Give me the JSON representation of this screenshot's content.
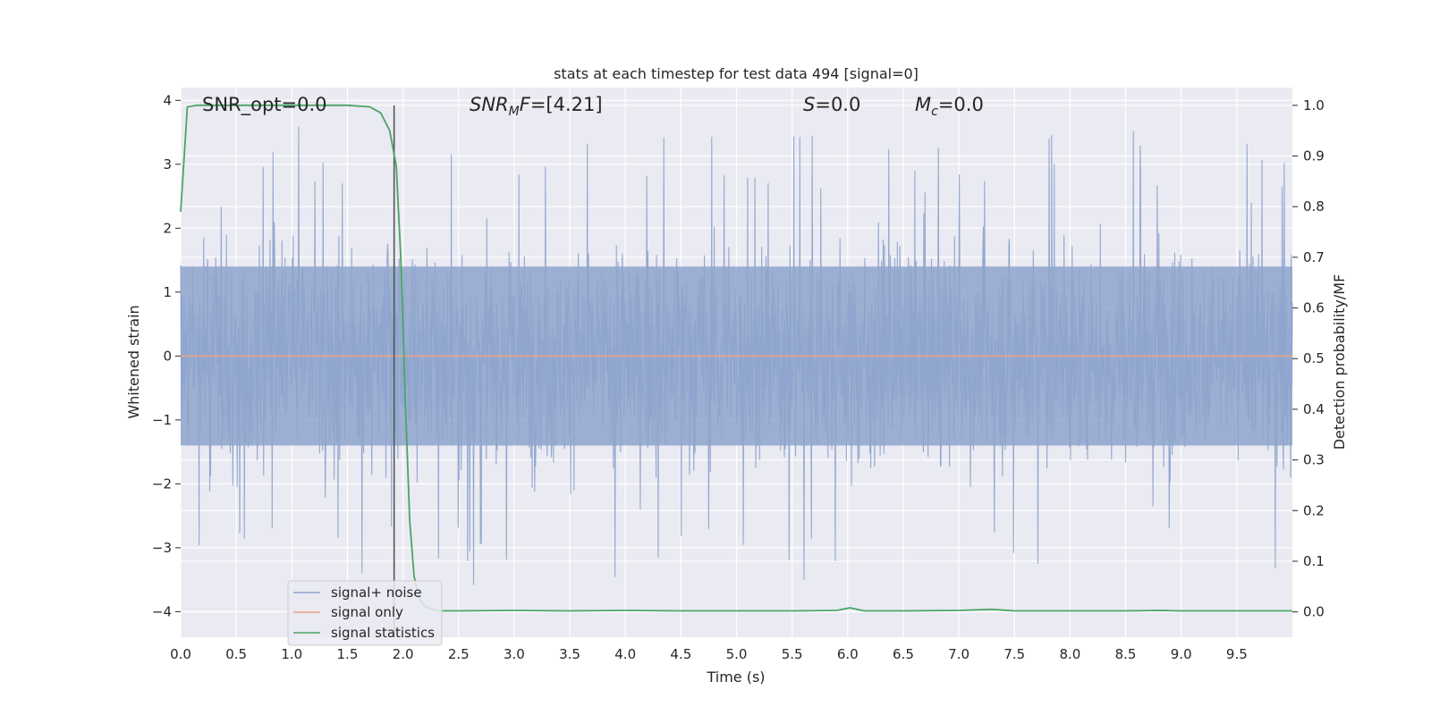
{
  "chart_data": {
    "type": "line",
    "title": "stats at each timestep for test data 494 [signal=0]",
    "xlabel": "Time (s)",
    "ylabel": "Whitened strain",
    "y2label": "Detection probability/MF",
    "xlim": [
      0.0,
      10.0
    ],
    "ylim": [
      -4.4,
      4.2
    ],
    "y2lim": [
      -0.05,
      1.035
    ],
    "xticks": [
      "0.0",
      "0.5",
      "1.0",
      "1.5",
      "2.0",
      "2.5",
      "3.0",
      "3.5",
      "4.0",
      "4.5",
      "5.0",
      "5.5",
      "6.0",
      "6.5",
      "7.0",
      "7.5",
      "8.0",
      "8.5",
      "9.0",
      "9.5"
    ],
    "yticks": [
      "4",
      "3",
      "2",
      "1",
      "0",
      "−1",
      "−2",
      "−3",
      "−4"
    ],
    "y2ticks": [
      "1.0",
      "0.9",
      "0.8",
      "0.7",
      "0.6",
      "0.5",
      "0.4",
      "0.3",
      "0.2",
      "0.1",
      "0.0"
    ],
    "grid": true,
    "legend_position": "lower-left",
    "annotations": {
      "snr_opt": "SNR_opt=0.0",
      "snr_mf_var": "SNR",
      "snr_mf_sub": "M",
      "snr_mf_var2": "F",
      "snr_mf_value": "=[4.21]",
      "s_var": "S",
      "s_value": "=0.0",
      "mc_var": "M",
      "mc_sub": "c",
      "mc_value": "=0.0"
    },
    "vertical_marker_x": 1.92,
    "series": [
      {
        "name": "signal+ noise",
        "axis": "left",
        "color": "#8ea4cc",
        "description_values": {
          "sample_rate_hz": 2048,
          "typical_abs_peak": 2.3,
          "band_core_abs": 1.4
        }
      },
      {
        "name": "signal only",
        "axis": "left",
        "color": "#e8a487",
        "x": [
          0.0,
          10.0
        ],
        "y": [
          0.0,
          0.0
        ]
      },
      {
        "name": "signal statistics",
        "axis": "right",
        "color": "#4aa564",
        "x": [
          0.0,
          0.06,
          0.15,
          0.3,
          0.5,
          1.0,
          1.5,
          1.7,
          1.8,
          1.88,
          1.94,
          1.98,
          2.02,
          2.06,
          2.1,
          2.15,
          2.2,
          2.3,
          2.5,
          3.0,
          3.5,
          4.0,
          4.5,
          5.0,
          5.5,
          5.9,
          6.02,
          6.15,
          6.5,
          7.0,
          7.3,
          7.5,
          8.0,
          8.5,
          8.8,
          9.0,
          9.5,
          10.0
        ],
        "y": [
          0.79,
          0.997,
          1.0,
          1.0,
          1.0,
          1.0,
          1.0,
          0.997,
          0.985,
          0.95,
          0.88,
          0.7,
          0.42,
          0.18,
          0.07,
          0.025,
          0.01,
          0.002,
          0.002,
          0.003,
          0.002,
          0.003,
          0.002,
          0.002,
          0.002,
          0.003,
          0.008,
          0.002,
          0.002,
          0.003,
          0.005,
          0.002,
          0.002,
          0.002,
          0.003,
          0.002,
          0.002,
          0.002
        ]
      }
    ]
  }
}
